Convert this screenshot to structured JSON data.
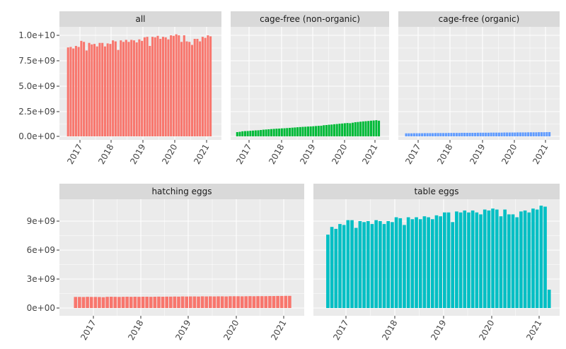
{
  "chart_data": [
    {
      "type": "bar",
      "facet": "all",
      "x_start": "2016-08",
      "x_end": "2021-02",
      "x_ticks": [
        "2017",
        "2018",
        "2019",
        "2020",
        "2021"
      ],
      "y_ticks": [
        "0.0e+00",
        "2.5e+09",
        "5.0e+09",
        "7.5e+09",
        "1.0e+10"
      ],
      "ylim": [
        0,
        10500000000
      ],
      "values": [
        8800000000.0,
        8850000000.0,
        8700000000.0,
        8950000000.0,
        8850000000.0,
        9450000000.0,
        9350000000.0,
        8500000000.0,
        9250000000.0,
        9100000000.0,
        9150000000.0,
        8900000000.0,
        9250000000.0,
        9250000000.0,
        8900000000.0,
        9200000000.0,
        9150000000.0,
        9500000000.0,
        9400000000.0,
        8550000000.0,
        9500000000.0,
        9350000000.0,
        9550000000.0,
        9350000000.0,
        9550000000.0,
        9500000000.0,
        9300000000.0,
        9600000000.0,
        9450000000.0,
        9800000000.0,
        9850000000.0,
        8950000000.0,
        9850000000.0,
        9800000000.0,
        9950000000.0,
        9650000000.0,
        9850000000.0,
        9800000000.0,
        9600000000.0,
        10000000000.0,
        9950000000.0,
        10100000000.0,
        10000000000.0,
        9350000000.0,
        10000000000.0,
        9400000000.0,
        9350000000.0,
        9050000000.0,
        9650000000.0,
        9650000000.0,
        9400000000.0,
        9850000000.0,
        9750000000.0,
        10000000000.0,
        9900000000.0
      ]
    },
    {
      "type": "bar",
      "facet": "cage-free (non-organic)",
      "x_start": "2016-08",
      "x_end": "2021-02",
      "x_ticks": [
        "2017",
        "2018",
        "2019",
        "2020",
        "2021"
      ],
      "ylim": [
        0,
        10500000000
      ],
      "values": [
        420000000.0,
        450000000.0,
        500000000.0,
        520000000.0,
        530000000.0,
        550000000.0,
        570000000.0,
        590000000.0,
        600000000.0,
        630000000.0,
        660000000.0,
        680000000.0,
        700000000.0,
        720000000.0,
        740000000.0,
        760000000.0,
        770000000.0,
        790000000.0,
        800000000.0,
        820000000.0,
        840000000.0,
        860000000.0,
        880000000.0,
        900000000.0,
        920000000.0,
        940000000.0,
        950000000.0,
        970000000.0,
        980000000.0,
        1000000000.0,
        1020000000.0,
        1040000000.0,
        1050000000.0,
        1100000000.0,
        1120000000.0,
        1150000000.0,
        1170000000.0,
        1200000000.0,
        1220000000.0,
        1250000000.0,
        1270000000.0,
        1300000000.0,
        1320000000.0,
        1300000000.0,
        1350000000.0,
        1400000000.0,
        1420000000.0,
        1450000000.0,
        1480000000.0,
        1500000000.0,
        1520000000.0,
        1550000000.0,
        1570000000.0,
        1600000000.0,
        1550000000.0
      ]
    },
    {
      "type": "bar",
      "facet": "cage-free (organic)",
      "x_start": "2016-08",
      "x_end": "2021-02",
      "x_ticks": [
        "2017",
        "2018",
        "2019",
        "2020",
        "2021"
      ],
      "ylim": [
        0,
        10500000000
      ],
      "values": [
        300000000.0,
        300000000.0,
        300000000.0,
        310000000.0,
        310000000.0,
        310000000.0,
        310000000.0,
        320000000.0,
        320000000.0,
        320000000.0,
        320000000.0,
        330000000.0,
        330000000.0,
        330000000.0,
        330000000.0,
        330000000.0,
        340000000.0,
        340000000.0,
        340000000.0,
        340000000.0,
        340000000.0,
        350000000.0,
        350000000.0,
        350000000.0,
        350000000.0,
        350000000.0,
        350000000.0,
        360000000.0,
        360000000.0,
        360000000.0,
        360000000.0,
        360000000.0,
        370000000.0,
        370000000.0,
        370000000.0,
        370000000.0,
        370000000.0,
        380000000.0,
        380000000.0,
        380000000.0,
        380000000.0,
        380000000.0,
        390000000.0,
        390000000.0,
        390000000.0,
        390000000.0,
        400000000.0,
        400000000.0,
        400000000.0,
        400000000.0,
        410000000.0,
        410000000.0,
        410000000.0,
        420000000.0,
        420000000.0
      ]
    },
    {
      "type": "bar",
      "facet": "hatching eggs",
      "x_start": "2016-08",
      "x_end": "2021-02",
      "x_ticks": [
        "2017",
        "2018",
        "2019",
        "2020",
        "2021"
      ],
      "y_ticks": [
        "0e+00",
        "3e+09",
        "6e+09",
        "9e+09"
      ],
      "ylim": [
        0,
        11200000000
      ],
      "values": [
        1150000000.0,
        1150000000.0,
        1140000000.0,
        1160000000.0,
        1150000000.0,
        1150000000.0,
        1140000000.0,
        1120000000.0,
        1160000000.0,
        1170000000.0,
        1160000000.0,
        1150000000.0,
        1160000000.0,
        1170000000.0,
        1160000000.0,
        1170000000.0,
        1160000000.0,
        1170000000.0,
        1170000000.0,
        1160000000.0,
        1170000000.0,
        1180000000.0,
        1170000000.0,
        1180000000.0,
        1180000000.0,
        1190000000.0,
        1180000000.0,
        1200000000.0,
        1190000000.0,
        1200000000.0,
        1200000000.0,
        1190000000.0,
        1210000000.0,
        1200000000.0,
        1210000000.0,
        1200000000.0,
        1210000000.0,
        1210000000.0,
        1200000000.0,
        1220000000.0,
        1220000000.0,
        1220000000.0,
        1210000000.0,
        1220000000.0,
        1230000000.0,
        1220000000.0,
        1230000000.0,
        1230000000.0,
        1230000000.0,
        1240000000.0,
        1240000000.0,
        1250000000.0,
        1250000000.0,
        1260000000.0,
        1260000000.0
      ]
    },
    {
      "type": "bar",
      "facet": "table eggs",
      "x_start": "2016-08",
      "x_end": "2021-03",
      "x_ticks": [
        "2017",
        "2018",
        "2019",
        "2020",
        "2021"
      ],
      "ylim": [
        0,
        11200000000
      ],
      "values": [
        7600000000.0,
        8400000000.0,
        8200000000.0,
        8700000000.0,
        8600000000.0,
        9100000000.0,
        9100000000.0,
        8300000000.0,
        9000000000.0,
        8900000000.0,
        9000000000.0,
        8700000000.0,
        9100000000.0,
        9000000000.0,
        8700000000.0,
        9000000000.0,
        8900000000.0,
        9400000000.0,
        9300000000.0,
        8600000000.0,
        9400000000.0,
        9200000000.0,
        9400000000.0,
        9200000000.0,
        9500000000.0,
        9400000000.0,
        9200000000.0,
        9600000000.0,
        9500000000.0,
        9900000000.0,
        9900000000.0,
        8900000000.0,
        10000000000.0,
        9900000000.0,
        10100000000.0,
        9900000000.0,
        10100000000.0,
        9900000000.0,
        9700000000.0,
        10200000000.0,
        10100000000.0,
        10300000000.0,
        10200000000.0,
        9500000000.0,
        10200000000.0,
        9700000000.0,
        9700000000.0,
        9400000000.0,
        10000000000.0,
        10100000000.0,
        9900000000.0,
        10300000000.0,
        10200000000.0,
        10600000000.0,
        10500000000.0,
        1900000000.0
      ]
    }
  ],
  "colors": {
    "all": "#F8766D",
    "cage-free (non-organic)": "#00BA38",
    "cage-free (organic)": "#619CFF",
    "hatching eggs": "#F8766D",
    "table eggs": "#00BFC4",
    "panel_bg": "#EBEBEB",
    "strip_bg": "#D9D9D9",
    "grid": "#FFFFFF"
  }
}
